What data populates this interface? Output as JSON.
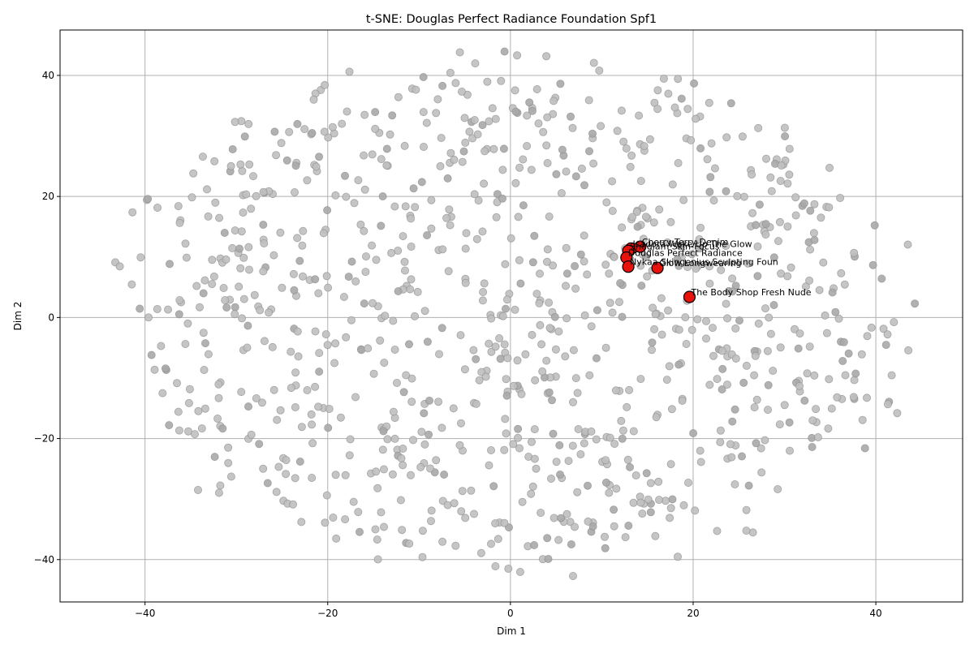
{
  "chart_data": {
    "type": "scatter",
    "title": "t-SNE: Douglas Perfect Radiance Foundation Spf1",
    "xlabel": "Dim 1",
    "ylabel": "Dim 2",
    "xlim": [
      -49.3,
      49.5
    ],
    "ylim": [
      -47.0,
      47.5
    ],
    "xticks": [
      -40,
      -20,
      0,
      20,
      40
    ],
    "yticks": [
      -40,
      -20,
      0,
      20,
      40
    ],
    "xtick_labels": [
      "−40",
      "−20",
      "0",
      "20",
      "40"
    ],
    "ytick_labels": [
      "−40",
      "−20",
      "0",
      "20",
      "40"
    ],
    "grid": true,
    "colors": {
      "background": "#bfbfbf",
      "background_edge": "#8c8c8c",
      "highlight": "#e8120c",
      "highlight_edge": "#000000",
      "grid": "#b0b0b0"
    },
    "background_seed": 20240,
    "background_count": 1000,
    "highlighted": [
      {
        "label": "Isadora Wake Up The Glow",
        "x": 13.2,
        "y": 11.4
      },
      {
        "label": "Sheglam Skin-Focus",
        "x": 12.9,
        "y": 11.0
      },
      {
        "label": "Cherry Terry Denim",
        "x": 14.2,
        "y": 11.7
      },
      {
        "label": "Douglas Perfect Radiance",
        "x": 12.7,
        "y": 9.9
      },
      {
        "label": "Nykaa Skingenius Sculpting Foun",
        "x": 12.9,
        "y": 8.4
      },
      {
        "label": "Glow Longwearing",
        "x": 16.1,
        "y": 8.2
      },
      {
        "label": "The Body Shop Fresh Nude",
        "x": 19.6,
        "y": 3.4
      }
    ]
  }
}
